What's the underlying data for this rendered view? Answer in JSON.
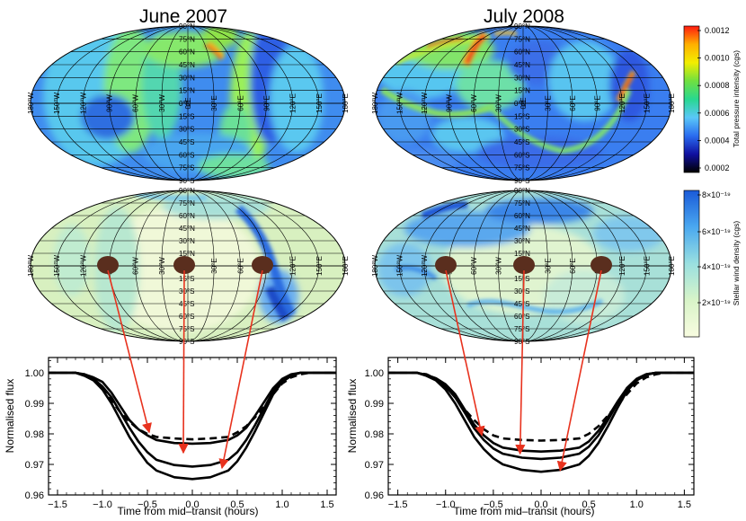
{
  "panels": [
    {
      "title": "June 2007",
      "ylabel": "Normalised flux",
      "xlabel": "Time from mid–transit (hours)"
    },
    {
      "title": "July 2008",
      "ylabel": "Normalised flux",
      "xlabel": "Time from mid–transit (hours)"
    }
  ],
  "map_grid": {
    "lat_labels": [
      "90°N",
      "75°N",
      "60°N",
      "45°N",
      "30°N",
      "15°N",
      "0°N",
      "15°S",
      "30°S",
      "45°S",
      "60°S",
      "75°S",
      "90°S"
    ],
    "lon_labels": [
      "180°W",
      "150°W",
      "120°W",
      "90°W",
      "60°W",
      "30°W",
      "0°E",
      "30°E",
      "60°E",
      "90°E",
      "120°E",
      "150°E",
      "180°E"
    ]
  },
  "colorbars": {
    "pressure": {
      "title": "Total pressure intensity (cgs)",
      "ticks": [
        "0.0012",
        "0.0010",
        "0.0008",
        "0.0006",
        "0.0004",
        "0.0002"
      ],
      "colors": [
        "#ff1a10",
        "#ffb000",
        "#f2ee00",
        "#70e040",
        "#28d890",
        "#5ac8f8",
        "#2a6cf0",
        "#1010a0",
        "#000000"
      ]
    },
    "density": {
      "title": "Stellar wind density (cgs)",
      "ticks": [
        "8×10⁻¹⁹",
        "6×10⁻¹⁹",
        "4×10⁻¹⁹",
        "2×10⁻¹⁹"
      ],
      "colors": [
        "#1a5ad8",
        "#4aa8f0",
        "#9ae0e0",
        "#d8f4c8",
        "#f8fce0"
      ]
    }
  },
  "chart_data": [
    {
      "type": "line",
      "title": "June 2007",
      "xlabel": "Time from mid–transit (hours)",
      "ylabel": "Normalised flux",
      "xlim": [
        -1.6,
        1.6
      ],
      "ylim": [
        0.96,
        1.005
      ],
      "xticks": [
        "−1.5",
        "−1.0",
        "−0.5",
        "0.0",
        "0.5",
        "1.0",
        "1.5"
      ],
      "yticks": [
        "1.00",
        "0.99",
        "0.98",
        "0.97",
        "0.96"
      ],
      "series": [
        {
          "name": "dashed",
          "style": "dashed",
          "x": [
            -1.6,
            -1.3,
            -1.2,
            -1.1,
            -1.0,
            -0.9,
            -0.8,
            -0.7,
            -0.6,
            -0.5,
            -0.4,
            -0.2,
            0.0,
            0.2,
            0.4,
            0.5,
            0.6,
            0.7,
            0.8,
            0.9,
            1.0,
            1.1,
            1.2,
            1.3,
            1.6
          ],
          "y": [
            1.0,
            1.0,
            0.9995,
            0.998,
            0.995,
            0.991,
            0.987,
            0.984,
            0.9815,
            0.98,
            0.979,
            0.9785,
            0.9782,
            0.9785,
            0.979,
            0.9805,
            0.9825,
            0.9855,
            0.989,
            0.993,
            0.9965,
            0.9985,
            0.9995,
            1.0,
            1.0
          ]
        },
        {
          "name": "solid 1",
          "style": "solid",
          "x": [
            -1.6,
            -1.3,
            -1.2,
            -1.1,
            -1.0,
            -0.9,
            -0.8,
            -0.7,
            -0.6,
            -0.5,
            -0.4,
            -0.2,
            0.0,
            0.2,
            0.4,
            0.5,
            0.6,
            0.7,
            0.8,
            0.9,
            1.0,
            1.1,
            1.2,
            1.3,
            1.6
          ],
          "y": [
            1.0,
            1.0,
            0.9995,
            0.9985,
            0.997,
            0.9935,
            0.989,
            0.9845,
            0.9815,
            0.9795,
            0.978,
            0.977,
            0.9768,
            0.977,
            0.978,
            0.9795,
            0.982,
            0.986,
            0.9905,
            0.995,
            0.998,
            0.9995,
            1.0,
            1.0,
            1.0
          ]
        },
        {
          "name": "solid 2",
          "style": "solid",
          "x": [
            -1.6,
            -1.3,
            -1.2,
            -1.1,
            -1.0,
            -0.9,
            -0.8,
            -0.7,
            -0.6,
            -0.5,
            -0.4,
            -0.2,
            0.0,
            0.2,
            0.4,
            0.5,
            0.6,
            0.7,
            0.8,
            0.9,
            1.0,
            1.1,
            1.2,
            1.3,
            1.6
          ],
          "y": [
            1.0,
            1.0,
            0.9993,
            0.998,
            0.9955,
            0.992,
            0.987,
            0.982,
            0.9775,
            0.974,
            0.9715,
            0.9698,
            0.9693,
            0.9698,
            0.9715,
            0.974,
            0.978,
            0.983,
            0.9885,
            0.994,
            0.9975,
            0.9993,
            1.0,
            1.0,
            1.0
          ]
        },
        {
          "name": "solid 3",
          "style": "solid",
          "x": [
            -1.6,
            -1.3,
            -1.2,
            -1.1,
            -1.0,
            -0.9,
            -0.8,
            -0.7,
            -0.6,
            -0.5,
            -0.4,
            -0.2,
            0.0,
            0.2,
            0.4,
            0.5,
            0.6,
            0.7,
            0.8,
            0.9,
            1.0,
            1.1,
            1.2,
            1.3,
            1.6
          ],
          "y": [
            1.0,
            1.0,
            0.999,
            0.9975,
            0.9945,
            0.99,
            0.9845,
            0.979,
            0.9745,
            0.9705,
            0.968,
            0.9658,
            0.9652,
            0.9658,
            0.968,
            0.971,
            0.9755,
            0.981,
            0.987,
            0.993,
            0.997,
            0.999,
            1.0,
            1.0,
            1.0
          ]
        }
      ],
      "arrows": [
        {
          "from_spot": 0,
          "to": [
            -0.48,
            0.9805
          ]
        },
        {
          "from_spot": 1,
          "to": [
            -0.1,
            0.9738
          ]
        },
        {
          "from_spot": 2,
          "to": [
            0.33,
            0.9688
          ]
        }
      ]
    },
    {
      "type": "line",
      "title": "July 2008",
      "xlabel": "Time from mid–transit (hours)",
      "ylabel": "Normalised flux",
      "xlim": [
        -1.6,
        1.6
      ],
      "ylim": [
        0.96,
        1.005
      ],
      "xticks": [
        "−1.5",
        "−1.0",
        "−0.5",
        "0.0",
        "0.5",
        "1.0",
        "1.5"
      ],
      "yticks": [
        "1.00",
        "0.99",
        "0.98",
        "0.97",
        "0.96"
      ],
      "series": [
        {
          "name": "dashed",
          "style": "dashed",
          "x": [
            -1.6,
            -1.3,
            -1.2,
            -1.1,
            -1.0,
            -0.9,
            -0.8,
            -0.7,
            -0.6,
            -0.5,
            -0.4,
            -0.2,
            0.0,
            0.2,
            0.4,
            0.5,
            0.6,
            0.7,
            0.8,
            0.9,
            1.0,
            1.1,
            1.2,
            1.3,
            1.6
          ],
          "y": [
            1.0,
            1.0,
            0.9995,
            0.998,
            0.9955,
            0.992,
            0.988,
            0.9845,
            0.9815,
            0.9795,
            0.9785,
            0.978,
            0.9778,
            0.978,
            0.9785,
            0.98,
            0.9825,
            0.986,
            0.9895,
            0.993,
            0.9965,
            0.9985,
            0.9995,
            1.0,
            1.0
          ]
        },
        {
          "name": "solid 1",
          "style": "solid",
          "x": [
            -1.6,
            -1.3,
            -1.2,
            -1.1,
            -1.0,
            -0.9,
            -0.8,
            -0.7,
            -0.6,
            -0.5,
            -0.4,
            -0.2,
            0.0,
            0.2,
            0.4,
            0.5,
            0.6,
            0.7,
            0.8,
            0.9,
            1.0,
            1.1,
            1.2,
            1.3,
            1.6
          ],
          "y": [
            1.0,
            1.0,
            0.9993,
            0.9982,
            0.9962,
            0.993,
            0.988,
            0.983,
            0.9795,
            0.977,
            0.9755,
            0.9745,
            0.9742,
            0.9745,
            0.9755,
            0.9775,
            0.981,
            0.9855,
            0.9905,
            0.995,
            0.998,
            0.9995,
            1.0,
            1.0,
            1.0
          ]
        },
        {
          "name": "solid 2",
          "style": "solid",
          "x": [
            -1.6,
            -1.3,
            -1.2,
            -1.1,
            -1.0,
            -0.9,
            -0.8,
            -0.7,
            -0.6,
            -0.5,
            -0.4,
            -0.2,
            0.0,
            0.2,
            0.4,
            0.5,
            0.6,
            0.7,
            0.8,
            0.9,
            1.0,
            1.1,
            1.2,
            1.3,
            1.6
          ],
          "y": [
            1.0,
            1.0,
            0.9993,
            0.998,
            0.9955,
            0.992,
            0.987,
            0.9818,
            0.978,
            0.9752,
            0.9735,
            0.9722,
            0.9718,
            0.9722,
            0.9735,
            0.9758,
            0.9795,
            0.9845,
            0.99,
            0.995,
            0.998,
            0.9995,
            1.0,
            1.0,
            1.0
          ]
        },
        {
          "name": "solid 3",
          "style": "solid",
          "x": [
            -1.6,
            -1.3,
            -1.2,
            -1.1,
            -1.0,
            -0.9,
            -0.8,
            -0.7,
            -0.6,
            -0.5,
            -0.4,
            -0.2,
            0.0,
            0.2,
            0.4,
            0.5,
            0.6,
            0.7,
            0.8,
            0.9,
            1.0,
            1.1,
            1.2,
            1.3,
            1.6
          ],
          "y": [
            1.0,
            1.0,
            0.999,
            0.9975,
            0.9945,
            0.99,
            0.9845,
            0.979,
            0.975,
            0.972,
            0.97,
            0.9682,
            0.9676,
            0.9682,
            0.97,
            0.9728,
            0.977,
            0.9825,
            0.9885,
            0.994,
            0.9975,
            0.9993,
            1.0,
            1.0,
            1.0
          ]
        }
      ],
      "arrows": [
        {
          "from_spot": 0,
          "to": [
            -0.62,
            0.9795
          ]
        },
        {
          "from_spot": 1,
          "to": [
            -0.22,
            0.9735
          ]
        },
        {
          "from_spot": 2,
          "to": [
            0.2,
            0.968
          ]
        }
      ]
    }
  ]
}
